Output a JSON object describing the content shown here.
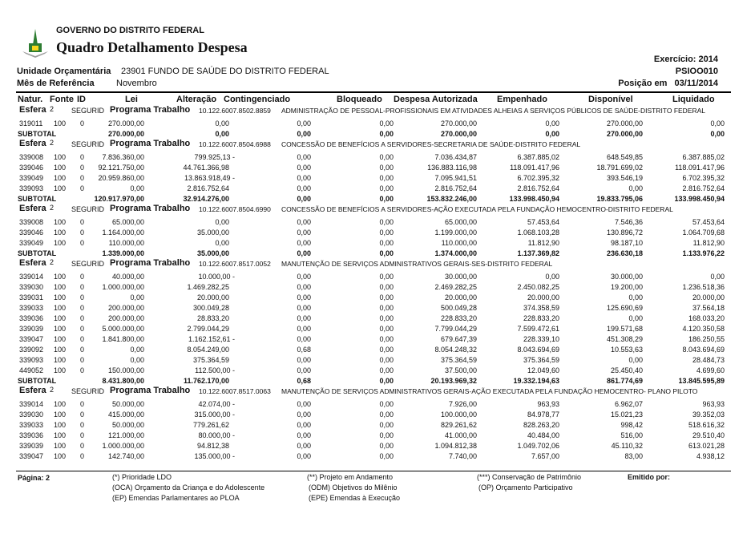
{
  "header": {
    "government": "GOVERNO DO DISTRITO FEDERAL",
    "title": "Quadro Detalhamento Despesa",
    "unidade_label": "Unidade Orçamentária",
    "unidade_value": "23901  FUNDO DE SAÚDE DO DISTRITO FEDERAL",
    "mes_label": "Mês de Referência",
    "mes_value": "Novembro",
    "exercicio": "Exercício: 2014",
    "report_code": "PSIOO010",
    "posicao_label": "Posição em",
    "posicao_value": "03/11/2014",
    "logo_colors": [
      "#2e7d32",
      "#f9d71c"
    ]
  },
  "columns": [
    "Natur.",
    "Fonte",
    "ID",
    "Lei",
    "Alteração",
    "Contingenciado",
    "Bloqueado",
    "Despesa Autorizada",
    "Empenhado",
    "Disponível",
    "Liquidado"
  ],
  "labels": {
    "esfera": "Esfera",
    "programa": "Programa Trabalho",
    "subtotal": "SUBTOTAL"
  },
  "blocks": [
    {
      "esfera": "2",
      "fonte_tipo": "SEGURID",
      "programa": "10.122.6007.8502.8859",
      "descricao": "ADMINISTRAÇÃO DE PESSOAL-PROFISSIONAIS EM ATIVIDADES ALHEIAS A SERVIÇOS PÚBLICOS DE SAÚDE-DISTRITO FEDERAL",
      "rows": [
        [
          "319011",
          "100",
          "0",
          "270.000,00",
          "0,00",
          "0,00",
          "0,00",
          "270.000,00",
          "0,00",
          "270.000,00",
          "0,00"
        ]
      ],
      "subtotal": [
        "270.000,00",
        "0,00",
        "0,00",
        "0,00",
        "270.000,00",
        "0,00",
        "270.000,00",
        "0,00"
      ]
    },
    {
      "esfera": "2",
      "fonte_tipo": "SEGURID",
      "programa": "10.122.6007.8504.6988",
      "descricao": "CONCESSÃO DE BENEFÍCIOS A SERVIDORES-SECRETARIA DE SAÚDE-DISTRITO FEDERAL",
      "rows": [
        [
          "339008",
          "100",
          "0",
          "7.836.360,00",
          "799.925,13 -",
          "0,00",
          "0,00",
          "7.036.434,87",
          "6.387.885,02",
          "648.549,85",
          "6.387.885,02"
        ],
        [
          "339046",
          "100",
          "0",
          "92.121.750,00",
          "44.761.366,98",
          "0,00",
          "0,00",
          "136.883.116,98",
          "118.091.417,96",
          "18.791.699,02",
          "118.091.417,96"
        ],
        [
          "339049",
          "100",
          "0",
          "20.959.860,00",
          "13.863.918,49 -",
          "0,00",
          "0,00",
          "7.095.941,51",
          "6.702.395,32",
          "393.546,19",
          "6.702.395,32"
        ],
        [
          "339093",
          "100",
          "0",
          "0,00",
          "2.816.752,64",
          "0,00",
          "0,00",
          "2.816.752,64",
          "2.816.752,64",
          "0,00",
          "2.816.752,64"
        ]
      ],
      "subtotal": [
        "120.917.970,00",
        "32.914.276,00",
        "0,00",
        "0,00",
        "153.832.246,00",
        "133.998.450,94",
        "19.833.795,06",
        "133.998.450,94"
      ]
    },
    {
      "esfera": "2",
      "fonte_tipo": "SEGURID",
      "programa": "10.122.6007.8504.6990",
      "descricao": "CONCESSÃO DE BENEFÍCIOS A SERVIDORES-AÇÃO EXECUTADA PELA FUNDAÇÃO HEMOCENTRO-DISTRITO FEDERAL",
      "rows": [
        [
          "339008",
          "100",
          "0",
          "65.000,00",
          "0,00",
          "0,00",
          "0,00",
          "65.000,00",
          "57.453,64",
          "7.546,36",
          "57.453,64"
        ],
        [
          "339046",
          "100",
          "0",
          "1.164.000,00",
          "35.000,00",
          "0,00",
          "0,00",
          "1.199.000,00",
          "1.068.103,28",
          "130.896,72",
          "1.064.709,68"
        ],
        [
          "339049",
          "100",
          "0",
          "110.000,00",
          "0,00",
          "0,00",
          "0,00",
          "110.000,00",
          "11.812,90",
          "98.187,10",
          "11.812,90"
        ]
      ],
      "subtotal": [
        "1.339.000,00",
        "35.000,00",
        "0,00",
        "0,00",
        "1.374.000,00",
        "1.137.369,82",
        "236.630,18",
        "1.133.976,22"
      ]
    },
    {
      "esfera": "2",
      "fonte_tipo": "SEGURID",
      "programa": "10.122.6007.8517.0052",
      "descricao": "MANUTENÇÃO DE SERVIÇOS ADMINISTRATIVOS GERAIS-SES-DISTRITO FEDERAL",
      "rows": [
        [
          "339014",
          "100",
          "0",
          "40.000,00",
          "10.000,00 -",
          "0,00",
          "0,00",
          "30.000,00",
          "0,00",
          "30.000,00",
          "0,00"
        ],
        [
          "339030",
          "100",
          "0",
          "1.000.000,00",
          "1.469.282,25",
          "0,00",
          "0,00",
          "2.469.282,25",
          "2.450.082,25",
          "19.200,00",
          "1.236.518,36"
        ],
        [
          "339031",
          "100",
          "0",
          "0,00",
          "20.000,00",
          "0,00",
          "0,00",
          "20.000,00",
          "20.000,00",
          "0,00",
          "20.000,00"
        ],
        [
          "339033",
          "100",
          "0",
          "200.000,00",
          "300.049,28",
          "0,00",
          "0,00",
          "500.049,28",
          "374.358,59",
          "125.690,69",
          "37.564,18"
        ],
        [
          "339036",
          "100",
          "0",
          "200.000,00",
          "28.833,20",
          "0,00",
          "0,00",
          "228.833,20",
          "228.833,20",
          "0,00",
          "168.033,20"
        ],
        [
          "339039",
          "100",
          "0",
          "5.000.000,00",
          "2.799.044,29",
          "0,00",
          "0,00",
          "7.799.044,29",
          "7.599.472,61",
          "199.571,68",
          "4.120.350,58"
        ],
        [
          "339047",
          "100",
          "0",
          "1.841.800,00",
          "1.162.152,61 -",
          "0,00",
          "0,00",
          "679.647,39",
          "228.339,10",
          "451.308,29",
          "186.250,55"
        ],
        [
          "339092",
          "100",
          "0",
          "0,00",
          "8.054.249,00",
          "0,68",
          "0,00",
          "8.054.248,32",
          "8.043.694,69",
          "10.553,63",
          "8.043.694,69"
        ],
        [
          "339093",
          "100",
          "0",
          "0,00",
          "375.364,59",
          "0,00",
          "0,00",
          "375.364,59",
          "375.364,59",
          "0,00",
          "28.484,73"
        ],
        [
          "449052",
          "100",
          "0",
          "150.000,00",
          "112.500,00 -",
          "0,00",
          "0,00",
          "37.500,00",
          "12.049,60",
          "25.450,40",
          "4.699,60"
        ]
      ],
      "subtotal": [
        "8.431.800,00",
        "11.762.170,00",
        "0,68",
        "0,00",
        "20.193.969,32",
        "19.332.194,63",
        "861.774,69",
        "13.845.595,89"
      ]
    },
    {
      "esfera": "2",
      "fonte_tipo": "SEGURID",
      "programa": "10.122.6007.8517.0063",
      "descricao": "MANUTENÇÃO DE SERVIÇOS ADMINISTRATIVOS GERAIS-AÇÃO EXECUTADA PELA FUNDAÇÃO HEMOCENTRO- PLANO PILOTO",
      "rows": [
        [
          "339014",
          "100",
          "0",
          "50.000,00",
          "42.074,00 -",
          "0,00",
          "0,00",
          "7.926,00",
          "963,93",
          "6.962,07",
          "963,93"
        ],
        [
          "339030",
          "100",
          "0",
          "415.000,00",
          "315.000,00 -",
          "0,00",
          "0,00",
          "100.000,00",
          "84.978,77",
          "15.021,23",
          "39.352,03"
        ],
        [
          "339033",
          "100",
          "0",
          "50.000,00",
          "779.261,62",
          "0,00",
          "0,00",
          "829.261,62",
          "828.263,20",
          "998,42",
          "518.616,32"
        ],
        [
          "339036",
          "100",
          "0",
          "121.000,00",
          "80.000,00 -",
          "0,00",
          "0,00",
          "41.000,00",
          "40.484,00",
          "516,00",
          "29.510,40"
        ],
        [
          "339039",
          "100",
          "0",
          "1.000.000,00",
          "94.812,38",
          "0,00",
          "0,00",
          "1.094.812,38",
          "1.049.702,06",
          "45.110,32",
          "613.021,28"
        ],
        [
          "339047",
          "100",
          "0",
          "142.740,00",
          "135.000,00 -",
          "0,00",
          "0,00",
          "7.740,00",
          "7.657,00",
          "83,00",
          "4.938,12"
        ]
      ]
    }
  ],
  "footer": {
    "pagina": "Página: 2",
    "legend": [
      "(*)  Prioridade LDO",
      "(**)  Projeto em Andamento",
      "(***)  Conservação de Patrimônio",
      "(OCA)  Orçamento da Criança e do Adolescente",
      "(ODM) Objetivos do Milênio",
      "(OP) Orçamento Participativo",
      "(EP)  Emendas Parlamentares ao PLOA",
      "(EPE) Emendas à Execução"
    ],
    "emitido": "Emitido por:"
  }
}
